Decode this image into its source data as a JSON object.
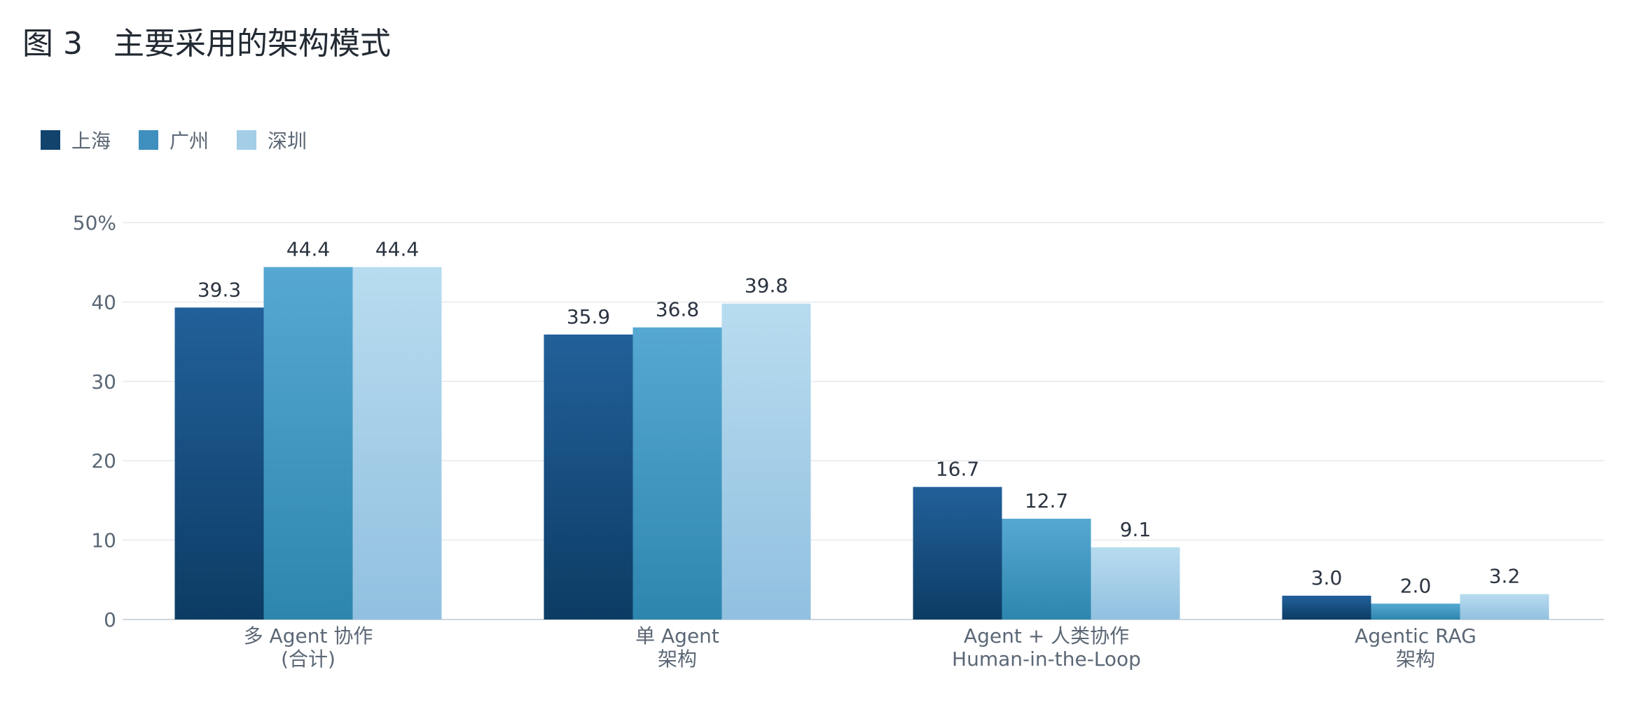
{
  "title": "图 3　主要采用的架构模式",
  "chart_data": {
    "type": "bar",
    "categories": [
      [
        "多 Agent 协作",
        "(合计)"
      ],
      [
        "单 Agent",
        "架构"
      ],
      [
        "Agent + 人类协作",
        "Human-in-the-Loop"
      ],
      [
        "Agentic RAG",
        "架构"
      ]
    ],
    "series": [
      {
        "name": "上海",
        "values": [
          39.3,
          35.9,
          16.7,
          3.0
        ],
        "color_top": "#22609a",
        "color_bottom": "#0c3c64"
      },
      {
        "name": "广州",
        "values": [
          44.4,
          36.8,
          12.7,
          2.0
        ],
        "color_top": "#56a8d2",
        "color_bottom": "#2d86ae"
      },
      {
        "name": "深圳",
        "values": [
          44.4,
          39.8,
          9.1,
          3.2
        ],
        "color_top": "#b8dcef",
        "color_bottom": "#91c0e0"
      }
    ],
    "value_labels": [
      [
        "39.3",
        "35.9",
        "16.7",
        "3.0"
      ],
      [
        "44.4",
        "36.8",
        "12.7",
        "2.0"
      ],
      [
        "44.4",
        "39.8",
        "9.1",
        "3.2"
      ]
    ],
    "y_ticks": [
      0,
      10,
      20,
      30,
      40,
      50
    ],
    "y_tick_labels": [
      "0",
      "10",
      "20",
      "30",
      "40",
      "50%"
    ],
    "ylim": [
      0,
      50
    ],
    "grid": true,
    "legend_position": "top-left",
    "legend_colors": [
      "#11436d",
      "#3f8fbf",
      "#a4cde7"
    ]
  }
}
